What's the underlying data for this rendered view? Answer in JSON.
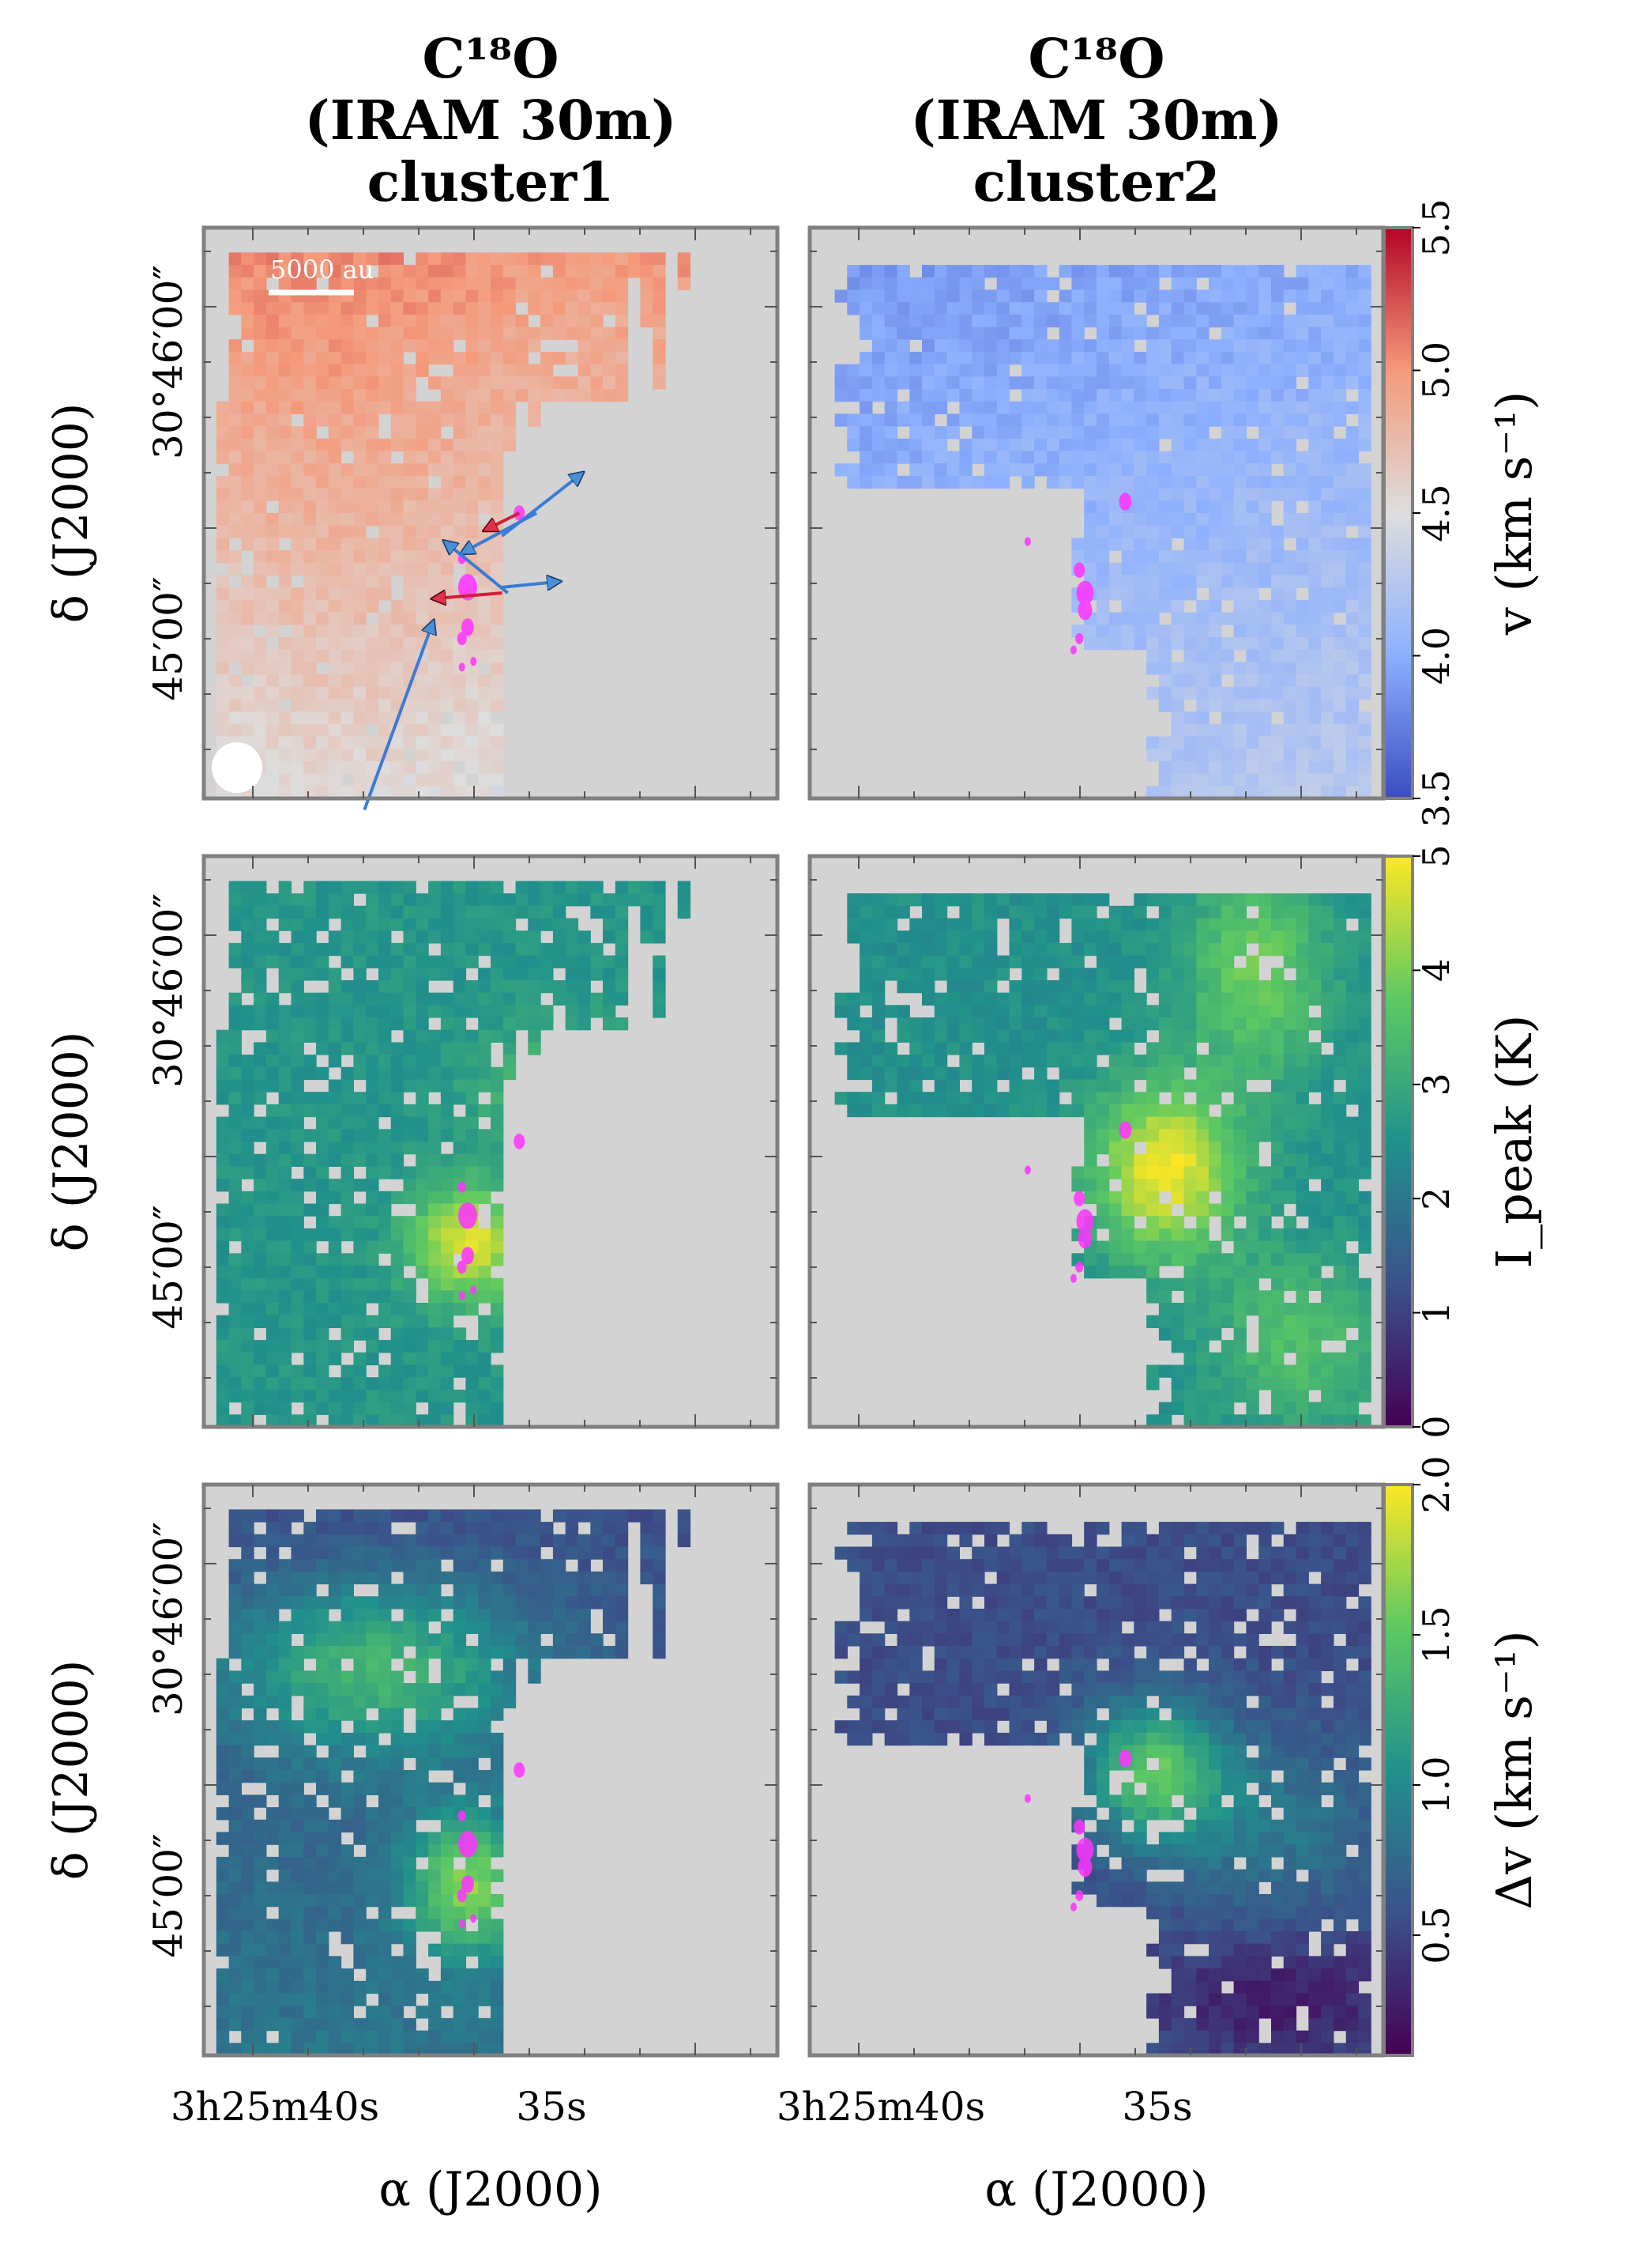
{
  "figure": {
    "columns": [
      {
        "title_lines": [
          "C¹⁸O",
          "(IRAM 30m)",
          "cluster1"
        ]
      },
      {
        "title_lines": [
          "C¹⁸O",
          "(IRAM 30m)",
          "cluster2"
        ]
      }
    ],
    "background_color": "#d3d3d3",
    "frame_color": "#808080",
    "protostar_color": "#ff33ff"
  },
  "chart_data": [
    {
      "type": "heatmap",
      "row": "velocity",
      "colormap": "coolwarm",
      "colorbar": {
        "label": "v (km s⁻¹)",
        "ticks": [
          "3.5",
          "4.0",
          "4.5",
          "5.0",
          "5.5"
        ],
        "range": [
          3.5,
          5.5
        ]
      },
      "xlabel": "",
      "ylabel": "δ (J2000)",
      "ytick_labels": [
        "30°46′00″",
        "45′00″"
      ],
      "panels": [
        {
          "cluster": "cluster1",
          "scale_bar": "5000 au",
          "beam": true,
          "outflow_arrows": 6,
          "regions": [
            {
              "area": "north",
              "value": 5.0
            },
            {
              "area": "central",
              "value": 4.8
            },
            {
              "area": "south",
              "value": 4.6
            }
          ]
        },
        {
          "cluster": "cluster2",
          "regions": [
            {
              "area": "north",
              "value": 3.9
            },
            {
              "area": "central",
              "value": 4.1
            },
            {
              "area": "south-east",
              "value": 4.2
            }
          ]
        }
      ]
    },
    {
      "type": "heatmap",
      "row": "peak_intensity",
      "colormap": "viridis",
      "colorbar": {
        "label": "I_peak (K)",
        "ticks": [
          "0",
          "1",
          "2",
          "3",
          "4",
          "5"
        ],
        "range": [
          0,
          5
        ]
      },
      "xlabel": "",
      "ylabel": "δ (J2000)",
      "ytick_labels": [
        "30°46′00″",
        "45′00″"
      ],
      "panels": [
        {
          "cluster": "cluster1",
          "regions": [
            {
              "area": "north",
              "value": 2.7
            },
            {
              "area": "central",
              "value": 3.3
            },
            {
              "area": "peak near protostars",
              "value": 4.8
            },
            {
              "area": "south",
              "value": 3.1
            }
          ]
        },
        {
          "cluster": "cluster2",
          "regions": [
            {
              "area": "north-west",
              "value": 2.6
            },
            {
              "area": "east",
              "value": 4.0
            },
            {
              "area": "peak near protostars",
              "value": 4.9
            },
            {
              "area": "south-east",
              "value": 3.6
            }
          ]
        }
      ]
    },
    {
      "type": "heatmap",
      "row": "linewidth",
      "colormap": "viridis",
      "colorbar": {
        "label": "Δv (km s⁻¹)",
        "ticks": [
          "0.5",
          "1.0",
          "1.5",
          "2.0"
        ],
        "range": [
          0.1,
          2.0
        ]
      },
      "xlabel": "α (J2000)",
      "ylabel": "δ (J2000)",
      "ytick_labels": [
        "30°46′00″",
        "45′00″"
      ],
      "xtick_labels": [
        "3h25m40s",
        "35s"
      ],
      "panels": [
        {
          "cluster": "cluster1",
          "regions": [
            {
              "area": "north",
              "value": 0.6
            },
            {
              "area": "central",
              "value": 1.2
            },
            {
              "area": "near protostars",
              "value": 1.6
            },
            {
              "area": "south",
              "value": 1.0
            }
          ]
        },
        {
          "cluster": "cluster2",
          "regions": [
            {
              "area": "north",
              "value": 0.5
            },
            {
              "area": "near protostars",
              "value": 1.5
            },
            {
              "area": "south-east",
              "value": 0.4
            }
          ]
        }
      ]
    }
  ]
}
